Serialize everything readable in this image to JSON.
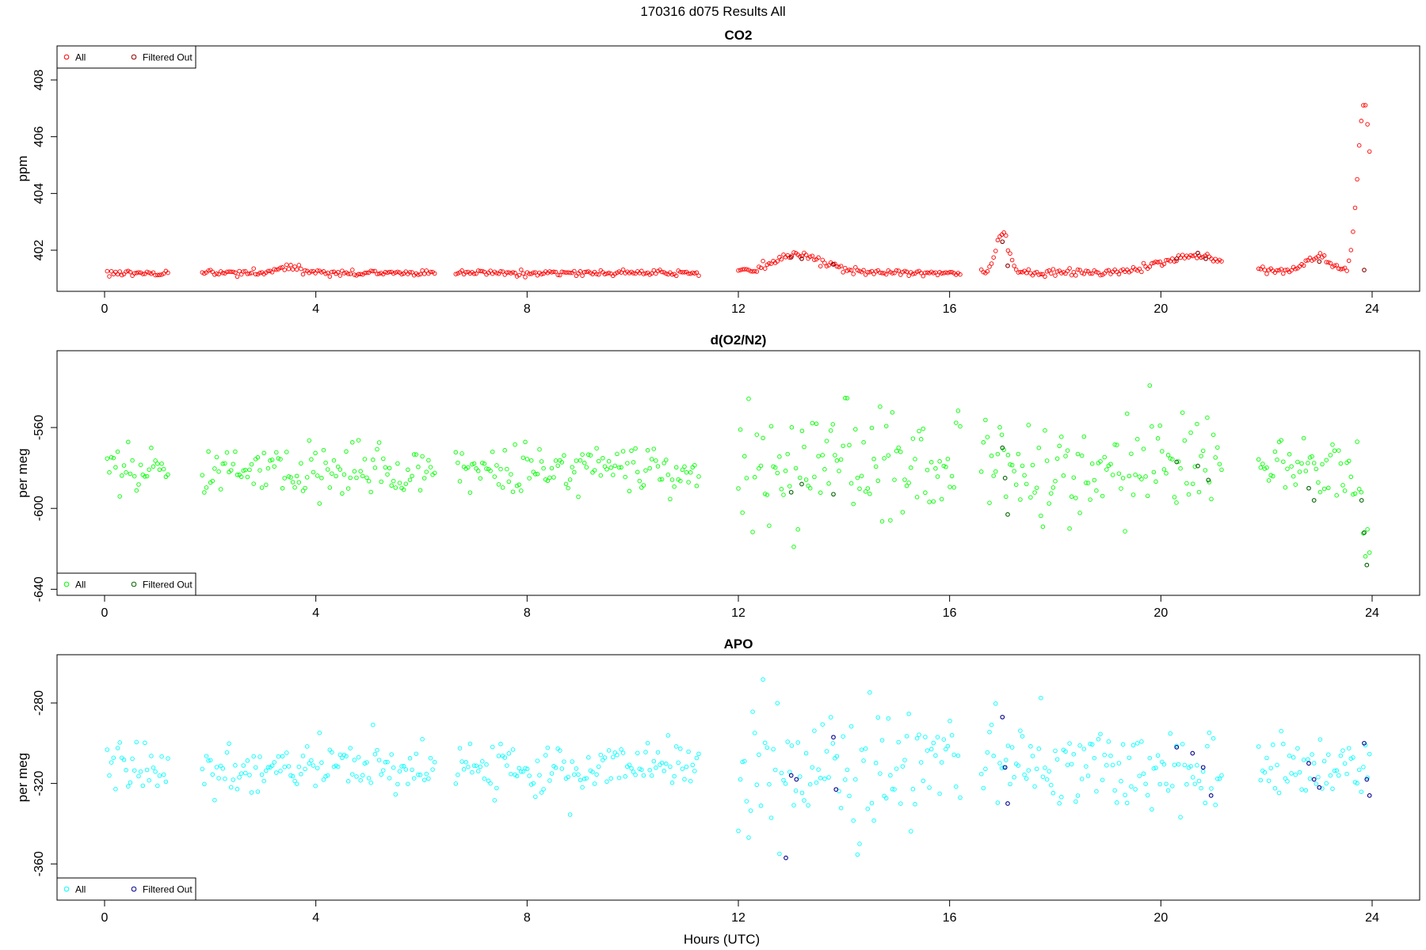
{
  "page_title": "170316   d075   Results All",
  "x_axis_label": "Hours (UTC)",
  "chart_data": [
    {
      "type": "scatter",
      "title": "CO2",
      "ylabel": "ppm",
      "xlim": [
        -0.9,
        24.9
      ],
      "ylim": [
        400.55,
        409.2
      ],
      "x_ticks": [
        0,
        4,
        8,
        12,
        16,
        20,
        24
      ],
      "y_ticks": [
        402,
        404,
        406,
        408
      ],
      "legend_position": "top-left",
      "series": [
        {
          "name": "All",
          "color": "#ff0000",
          "marker": "circle",
          "generated": {
            "segments": [
              [
                0.05,
                1.2
              ],
              [
                1.85,
                6.25
              ],
              [
                6.65,
                11.25
              ],
              [
                12.0,
                16.2
              ],
              [
                16.6,
                21.15
              ],
              [
                21.85,
                23.95
              ]
            ],
            "points_per_hour": 26,
            "base": 401.2,
            "noise": 0.05,
            "spread_factors": [
              [
                0,
                12,
                1
              ],
              [
                12,
                24,
                1.3
              ]
            ],
            "bumps": [
              [
                3.5,
                0.25,
                0.18
              ],
              [
                13.1,
                0.4,
                0.45
              ],
              [
                13.3,
                0.7,
                0.2
              ],
              [
                17.0,
                0.12,
                1.4
              ],
              [
                20.6,
                0.6,
                0.6
              ],
              [
                22.95,
                0.25,
                0.6
              ],
              [
                23.85,
                0.12,
                6.0
              ]
            ]
          }
        },
        {
          "name": "Filtered Out",
          "color": "#8b0000",
          "marker": "circle",
          "points": [
            [
              13.0,
              401.75
            ],
            [
              13.2,
              401.7
            ],
            [
              13.8,
              401.5
            ],
            [
              17.0,
              402.3
            ],
            [
              17.1,
              401.45
            ],
            [
              20.3,
              401.7
            ],
            [
              20.7,
              401.9
            ],
            [
              20.85,
              401.7
            ],
            [
              23.0,
              401.6
            ],
            [
              23.85,
              401.3
            ]
          ]
        }
      ]
    },
    {
      "type": "scatter",
      "title": "d(O2/N2)",
      "ylabel": "per meg",
      "xlim": [
        -0.9,
        24.9
      ],
      "ylim": [
        -643,
        -522
      ],
      "x_ticks": [
        0,
        4,
        8,
        12,
        16,
        20,
        24
      ],
      "y_ticks": [
        -560,
        -600,
        -640
      ],
      "legend_position": "bottom-left",
      "series": [
        {
          "name": "All",
          "color": "#00ff00",
          "marker": "circle",
          "generated": {
            "segments": [
              [
                0.05,
                1.2
              ],
              [
                1.85,
                6.25
              ],
              [
                6.65,
                11.25
              ],
              [
                12.0,
                16.2
              ],
              [
                16.6,
                21.15
              ],
              [
                21.85,
                23.95
              ]
            ],
            "points_per_hour": 26,
            "base": -580,
            "noise": 6,
            "spread_factors": [
              [
                0,
                12,
                1
              ],
              [
                12,
                16.3,
                2.6
              ],
              [
                16.3,
                21.3,
                2
              ],
              [
                21.3,
                24,
                1.2
              ]
            ],
            "bumps": [
              [
                23.9,
                0.08,
                -38
              ]
            ]
          }
        },
        {
          "name": "Filtered Out",
          "color": "#006400",
          "marker": "circle",
          "points": [
            [
              13.0,
              -592
            ],
            [
              13.2,
              -588
            ],
            [
              13.8,
              -593
            ],
            [
              17.0,
              -570
            ],
            [
              17.05,
              -585
            ],
            [
              17.1,
              -603
            ],
            [
              20.3,
              -577
            ],
            [
              20.7,
              -579
            ],
            [
              20.9,
              -586
            ],
            [
              22.8,
              -590
            ],
            [
              22.9,
              -596
            ],
            [
              23.8,
              -596
            ],
            [
              23.85,
              -612
            ],
            [
              23.9,
              -628
            ]
          ]
        }
      ]
    },
    {
      "type": "scatter",
      "title": "APO",
      "ylabel": "per meg",
      "xlim": [
        -0.9,
        24.9
      ],
      "ylim": [
        -378,
        -256
      ],
      "x_ticks": [
        0,
        4,
        8,
        12,
        16,
        20,
        24
      ],
      "y_ticks": [
        -280,
        -320,
        -360
      ],
      "legend_position": "bottom-left",
      "series": [
        {
          "name": "All",
          "color": "#00ffff",
          "marker": "circle",
          "generated": {
            "segments": [
              [
                0.05,
                1.2
              ],
              [
                1.85,
                6.25
              ],
              [
                6.65,
                11.25
              ],
              [
                12.0,
                16.2
              ],
              [
                16.6,
                21.15
              ],
              [
                21.85,
                23.95
              ]
            ],
            "points_per_hour": 26,
            "base": -312,
            "noise": 6,
            "spread_factors": [
              [
                0,
                12,
                1
              ],
              [
                12,
                16.3,
                2.6
              ],
              [
                16.3,
                21.3,
                2
              ],
              [
                21.3,
                24,
                1.2
              ]
            ],
            "bumps": []
          }
        },
        {
          "name": "Filtered Out",
          "color": "#00008b",
          "marker": "circle",
          "points": [
            [
              12.9,
              -357
            ],
            [
              13.0,
              -316
            ],
            [
              13.1,
              -318
            ],
            [
              13.8,
              -297
            ],
            [
              13.85,
              -323
            ],
            [
              17.0,
              -287
            ],
            [
              17.05,
              -312
            ],
            [
              17.1,
              -330
            ],
            [
              20.3,
              -302
            ],
            [
              20.6,
              -305
            ],
            [
              20.8,
              -312
            ],
            [
              20.95,
              -326
            ],
            [
              22.8,
              -310
            ],
            [
              22.9,
              -318
            ],
            [
              23.0,
              -322
            ],
            [
              23.85,
              -300
            ],
            [
              23.9,
              -318
            ],
            [
              23.95,
              -326
            ]
          ]
        }
      ]
    }
  ]
}
